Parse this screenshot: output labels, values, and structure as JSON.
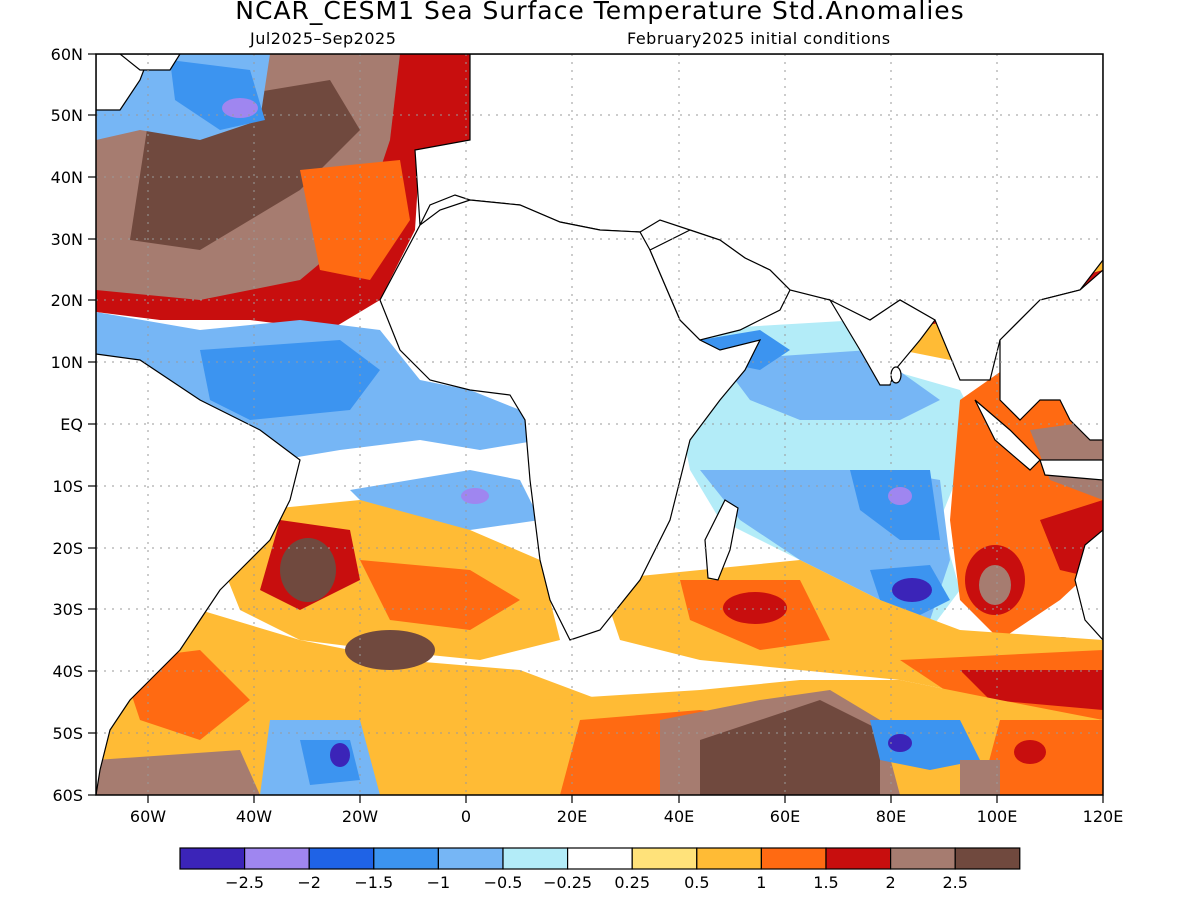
{
  "title": "NCAR_CESM1 Sea Surface Temperature Std.Anomalies",
  "season": "Jul2025–Sep2025",
  "init": "February2025 initial conditions",
  "map_data": {
    "lon_range": [
      "70W",
      "120E"
    ],
    "lat_range": [
      "60S",
      "60N"
    ],
    "grid": "dotted",
    "lat_labels": [
      "60N",
      "50N",
      "40N",
      "30N",
      "20N",
      "10N",
      "EQ",
      "10S",
      "20S",
      "30S",
      "40S",
      "50S",
      "60S"
    ],
    "lon_labels": [
      "60W",
      "40W",
      "20W",
      "0",
      "20E",
      "40E",
      "60E",
      "80E",
      "100E",
      "120E"
    ],
    "colorbar": {
      "colors": [
        "#3b24b8",
        "#9f86f0",
        "#1f63e6",
        "#3c94f0",
        "#76b6f5",
        "#b3ecf8",
        "#ffffff",
        "#ffe27a",
        "#ffbb35",
        "#ff6a12",
        "#c80e0e",
        "#a67c70",
        "#70493e"
      ],
      "labels": [
        "−2.5",
        "−2",
        "−1.5",
        "−1",
        "−0.5",
        "−0.25",
        "0.25",
        "0.5",
        "1",
        "1.5",
        "2",
        "2.5"
      ]
    }
  }
}
